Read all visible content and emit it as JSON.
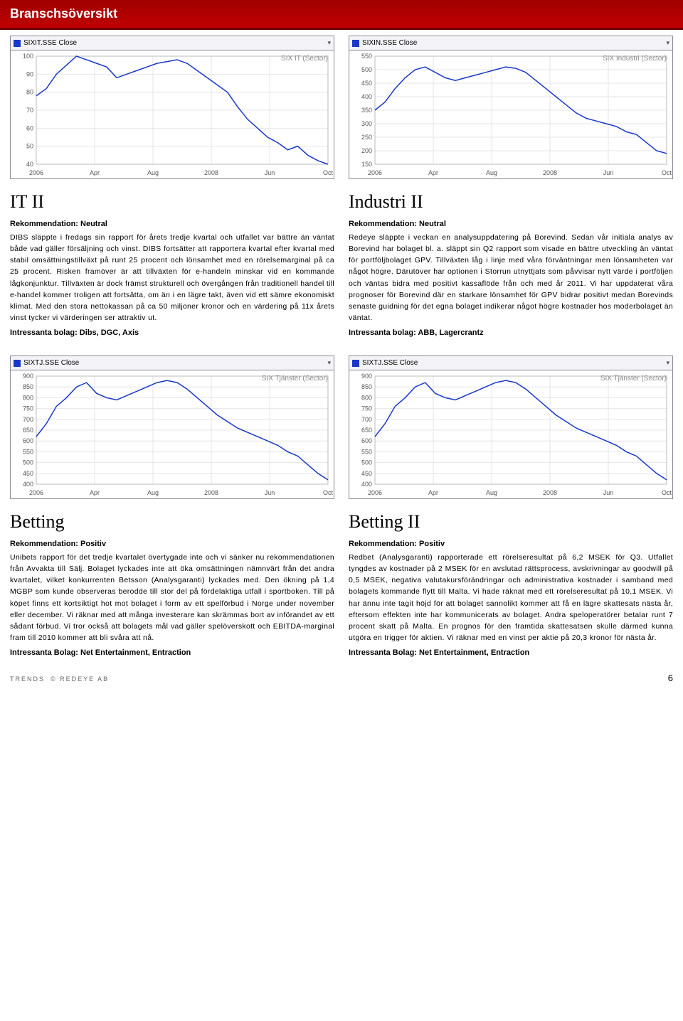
{
  "header": {
    "title": "Branschsöversikt"
  },
  "row1": {
    "left_chart": {
      "dropdown": "SIXIT.SSE Close",
      "title": "SIX IT (Sector)",
      "ylim": [
        40,
        100
      ],
      "yticks": [
        40,
        50,
        60,
        70,
        80,
        90,
        100
      ],
      "xticks": [
        "2006",
        "Apr",
        "Aug",
        "2008",
        "Jun",
        "Oct"
      ],
      "line_color": "#1838c8",
      "values": [
        78,
        82,
        90,
        95,
        100,
        98,
        96,
        94,
        88,
        90,
        92,
        94,
        96,
        97,
        98,
        96,
        92,
        88,
        84,
        80,
        72,
        65,
        60,
        55,
        52,
        48,
        50,
        45,
        42,
        40
      ]
    },
    "right_chart": {
      "dropdown": "SIXIN.SSE Close",
      "title": "SIX Industri (Sector)",
      "ylim": [
        150,
        550
      ],
      "yticks": [
        150,
        200,
        250,
        300,
        350,
        400,
        450,
        500,
        550
      ],
      "xticks": [
        "2006",
        "Apr",
        "Aug",
        "2008",
        "Jun",
        "Oct"
      ],
      "line_color": "#1838c8",
      "values": [
        350,
        380,
        430,
        470,
        500,
        510,
        490,
        470,
        460,
        470,
        480,
        490,
        500,
        510,
        505,
        490,
        460,
        430,
        400,
        370,
        340,
        320,
        310,
        300,
        290,
        270,
        260,
        230,
        200,
        190
      ]
    },
    "left_col": {
      "title": "IT II",
      "rec": "Rekommendation: Neutral",
      "body": "DIBS släppte i fredags sin rapport för årets tredje kvartal och utfallet var bättre än väntat både vad gäller försäljning och vinst. DIBS fortsätter att rapportera kvartal efter kvartal med stabil omsättningstillväxt på runt 25 procent och lönsamhet med en rörelsemarginal på ca 25 procent. Risken framöver är att tillväxten för e-handeln minskar vid en kommande lågkonjunktur. Tillväxten är dock främst strukturell och övergången från traditionell handel till e-handel kommer troligen att fortsätta, om än i en lägre takt, även vid ett sämre ekonomiskt klimat. Med den stora nettokassan på ca 50 miljoner kronor och en värdering på 11x årets vinst tycker vi värderingen ser attraktiv ut.",
      "intr": "Intressanta bolag: Dibs, DGC, Axis"
    },
    "right_col": {
      "title": "Industri II",
      "rec": "Rekommendation: Neutral",
      "body": "Redeye släppte i veckan en analysuppdatering på Borevind. Sedan vår initiala analys av Borevind har bolaget bl. a. släppt sin Q2 rapport som visade en bättre utveckling än väntat för portföljbolaget GPV. Tillväxten låg i linje med våra förväntningar men lönsamheten var något högre. Därutöver har optionen i Storrun utnyttjats som påvvisar nytt värde i portföljen och väntas bidra med positivt kassaflöde från och med år 2011. Vi har uppdaterat våra prognoser för Borevind där en starkare lönsamhet för GPV bidrar positivt medan Borevinds senaste guidning för det egna bolaget indikerar något högre kostnader hos moderbolaget än väntat.",
      "intr": "Intressanta bolag: ABB, Lagercrantz"
    }
  },
  "row2": {
    "left_chart": {
      "dropdown": "SIXTJ.SSE Close",
      "title": "SIX Tjänster (Sector)",
      "ylim": [
        400,
        900
      ],
      "yticks": [
        400,
        450,
        500,
        550,
        600,
        650,
        700,
        750,
        800,
        850,
        900
      ],
      "xticks": [
        "2006",
        "Apr",
        "Aug",
        "2008",
        "Jun",
        "Oct"
      ],
      "line_color": "#1838c8",
      "values": [
        620,
        680,
        760,
        800,
        850,
        870,
        820,
        800,
        790,
        810,
        830,
        850,
        870,
        880,
        870,
        840,
        800,
        760,
        720,
        690,
        660,
        640,
        620,
        600,
        580,
        550,
        530,
        490,
        450,
        420
      ]
    },
    "right_chart": {
      "dropdown": "SIXTJ.SSE Close",
      "title": "SIX Tjänster (Sector)",
      "ylim": [
        400,
        900
      ],
      "yticks": [
        400,
        450,
        500,
        550,
        600,
        650,
        700,
        750,
        800,
        850,
        900
      ],
      "xticks": [
        "2006",
        "Apr",
        "Aug",
        "2008",
        "Jun",
        "Oct"
      ],
      "line_color": "#1838c8",
      "values": [
        620,
        680,
        760,
        800,
        850,
        870,
        820,
        800,
        790,
        810,
        830,
        850,
        870,
        880,
        870,
        840,
        800,
        760,
        720,
        690,
        660,
        640,
        620,
        600,
        580,
        550,
        530,
        490,
        450,
        420
      ]
    },
    "left_col": {
      "title": "Betting",
      "rec": "Rekommendation: Positiv",
      "body": "Unibets rapport för det tredje kvartalet övertygade inte och vi sänker nu rekommendationen från Avvakta till Sälj. Bolaget lyckades inte att öka omsättningen nämnvärt från det andra kvartalet, vilket konkurrenten Betsson (Analysgaranti) lyckades med. Den ökning på 1,4 MGBP som kunde observeras berodde till stor del på fördelaktiga utfall i sportboken. Till på köpet finns ett kortsiktigt hot mot bolaget i form av ett spelförbud i Norge under november eller december. Vi räknar med att många investerare kan skrämmas bort av införandet av ett sådant förbud. Vi tror också att bolagets mål vad gäller spelöverskott och EBITDA-marginal fram till 2010 kommer att bli svåra att nå.",
      "intr": "Intressanta Bolag: Net Entertainment, Entraction"
    },
    "right_col": {
      "title": "Betting II",
      "rec": "Rekommendation: Positiv",
      "body": "Redbet (Analysgaranti) rapporterade ett rörelseresultat på 6,2 MSEK för Q3. Utfallet tyngdes av kostnader på 2 MSEK för en avslutad rättsprocess, avskrivningar av goodwill på 0,5 MSEK, negativa valutakursförändringar och administrativa kostnader i samband med bolagets kommande flytt till Malta. Vi hade räknat med ett rörelseresultat på 10,1 MSEK. Vi har ännu inte tagit höjd för att bolaget sannolikt kommer att få en lägre skattesats nästa år, eftersom effekten inte har kommunicerats av bolaget. Andra speloperatörer betalar runt 7 procent skatt på Malta. En prognos för den framtida skattesatsen skulle därmed kunna utgöra en trigger för aktien. Vi räknar med en vinst per aktie på 20,3 kronor för nästa år.",
      "intr": "Intressanta Bolag: Net Entertainment, Entraction"
    }
  },
  "footer": {
    "left1": "TRENDS",
    "left2": "© REDEYE AB",
    "page": "6"
  }
}
